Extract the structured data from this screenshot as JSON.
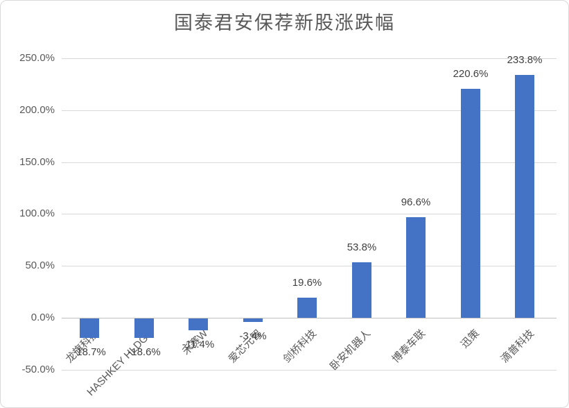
{
  "window": {
    "background": "#ffffff",
    "border_color": "#d9d9d9"
  },
  "chart_data": {
    "type": "bar",
    "title": "国泰君安保荐新股涨跌幅",
    "categories": [
      "龙旗科技",
      "HASHKEY HLDGS",
      "禾赛W",
      "爱芯元智",
      "剑桥科技",
      "卧安机器人",
      "博泰车联",
      "迅策",
      "滴普科技"
    ],
    "values": [
      -18.7,
      -18.6,
      -11.4,
      -3.4,
      19.6,
      53.8,
      96.6,
      220.6,
      233.8
    ],
    "value_labels": [
      "-18.7%",
      "-18.6%",
      "-11.4%",
      "-3.4%",
      "19.6%",
      "53.8%",
      "96.6%",
      "220.6%",
      "233.8%"
    ],
    "xlabel": "",
    "ylabel": "",
    "ylim": [
      -50,
      250
    ],
    "yticks": [
      250,
      200,
      150,
      100,
      50,
      0,
      -50
    ],
    "ytick_labels": [
      "250.0%",
      "200.0%",
      "150.0%",
      "100.0%",
      "50.0%",
      "0.0%",
      "-50.0%"
    ],
    "grid": true,
    "legend": false,
    "colors": {
      "bar": "#4472C4",
      "gridline": "#d9d9d9",
      "zero_axis": "#c0c0c0",
      "title_text": "#595959",
      "axis_text": "#595959",
      "value_text": "#404040"
    }
  }
}
